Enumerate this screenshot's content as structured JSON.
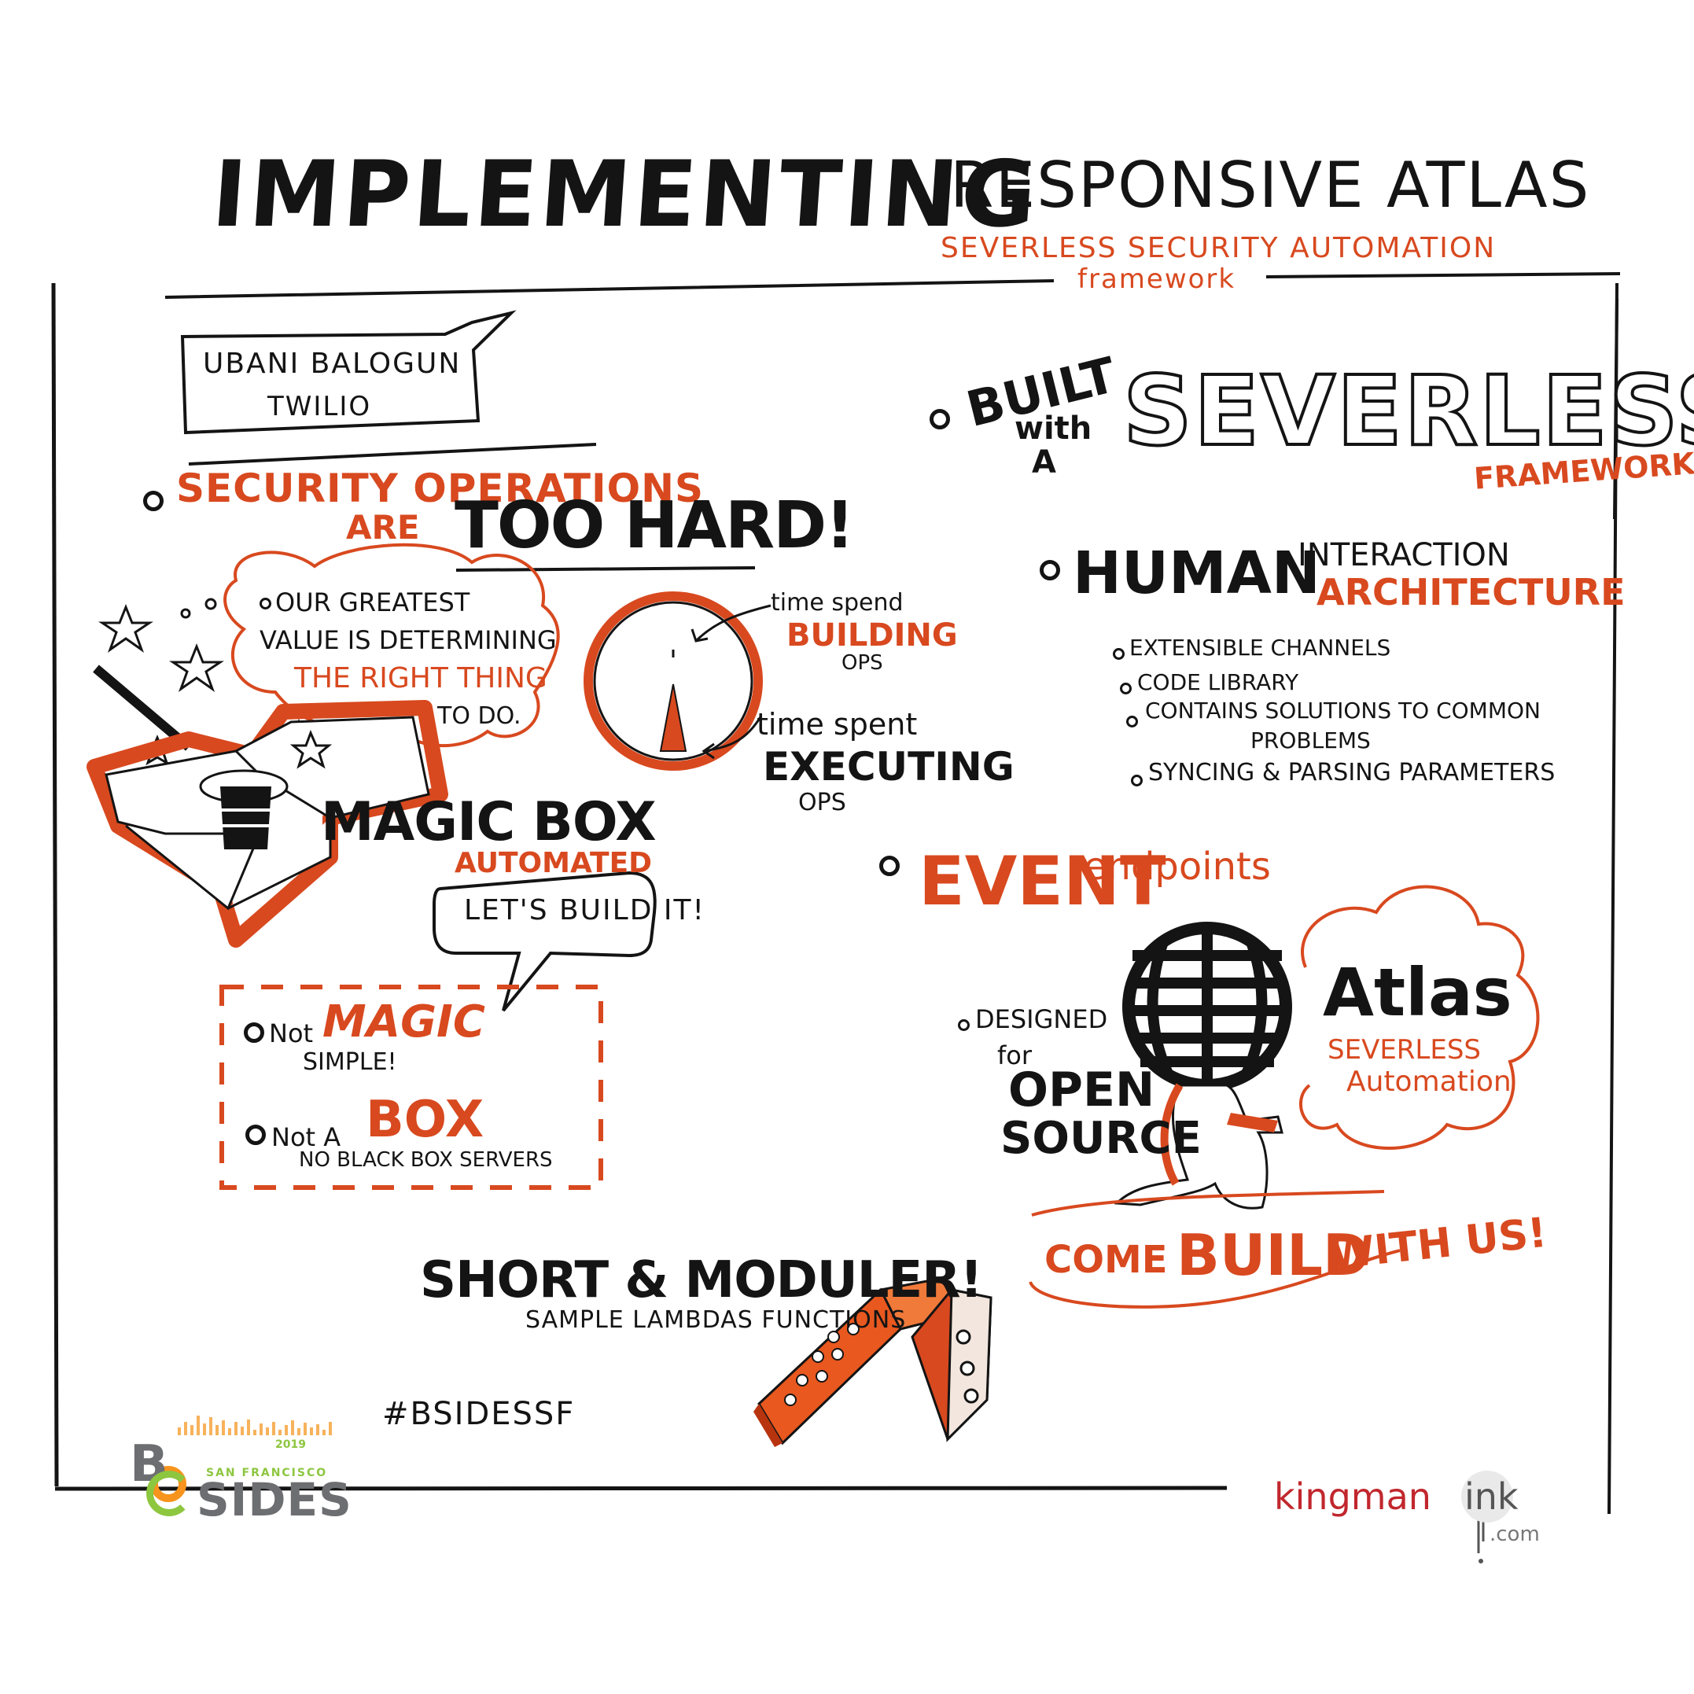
{
  "title": {
    "main": "IMPLEMENTING",
    "secondary": "RESPONSIVE ATLAS",
    "subtitle_line1": "SEVERLESS SECURITY AUTOMATION",
    "subtitle_line2": "framework"
  },
  "speaker": {
    "name": "UBANI BALOGUN",
    "company": "TWILIO"
  },
  "security": {
    "line1": "SECURITY OPERATIONS",
    "line2": "ARE",
    "emphasis": "TOO HARD!"
  },
  "cloud_value": {
    "line1": "OUR GREATEST",
    "line2": "VALUE IS DETERMINING",
    "line3": "THE RIGHT THING",
    "line4": "TO DO."
  },
  "magic_box": {
    "title": "MAGIC BOX",
    "subtitle": "AUTOMATED",
    "bubble": "LET'S BUILD IT!"
  },
  "clock": {
    "building_pre": "time spend",
    "building_word": "BUILDING",
    "building_post": "OPS",
    "executing_pre": "time spent",
    "executing_word": "EXECUTING",
    "executing_post": "OPS"
  },
  "not_magic": {
    "pre1": "Not",
    "word1": "MAGIC",
    "post1": "SIMPLE!",
    "pre2": "Not A",
    "word2": "BOX",
    "post2": "NO BLACK BOX SERVERS"
  },
  "built": {
    "word1": "BUILT",
    "word2": "with",
    "word3": "A",
    "big": "SEVERLESS",
    "framework": "FRAMEWORK"
  },
  "human": {
    "word1": "HUMAN",
    "word2": "INTERACTION",
    "word3": "ARCHITECTURE",
    "items": [
      "EXTENSIBLE CHANNELS",
      "CODE LIBRARY",
      "CONTAINS SOLUTIONS TO COMMON",
      "PROBLEMS",
      "SYNCING & PARSING PARAMETERS"
    ]
  },
  "event": {
    "word1": "EVENT",
    "word2": "endpoints"
  },
  "atlas": {
    "title": "Atlas",
    "line1": "SEVERLESS",
    "line2": "Automation",
    "designed": "DESIGNED",
    "for": "for",
    "open": "OPEN",
    "source": "SOURCE",
    "come_build_1": "COME",
    "come_build_2": "BUILD",
    "come_build_3": "WITH US!"
  },
  "short": {
    "title": "SHORT & MODULER!",
    "subtitle": "SAMPLE LAMBDAS FUNCTIONS"
  },
  "hashtag": "#BSIDESSF",
  "logo": {
    "b": "B",
    "sides": "SIDES",
    "year": "2019",
    "city": "SAN FRANCISCO"
  },
  "credit": {
    "kingman": "kingman",
    "ink": "ink",
    "com": ".com"
  },
  "colors": {
    "accent": "#d8491f",
    "ink": "#141414",
    "logo_green": "#8dc63f",
    "logo_gray": "#6d6e71",
    "logo_orange": "#f7941d"
  }
}
